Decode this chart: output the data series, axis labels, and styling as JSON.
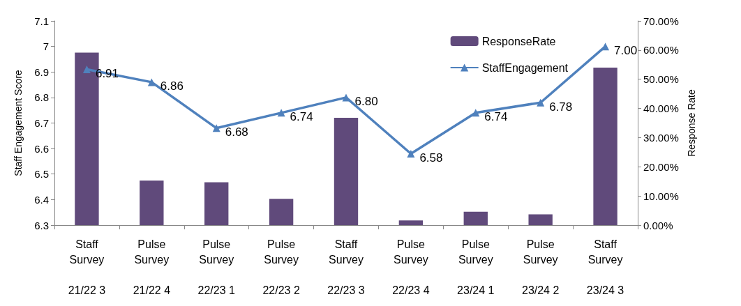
{
  "chart_data": {
    "type": "bar",
    "ylabel": "Staff Engagement Score",
    "y2label": "Response Rate",
    "categories": [
      "Staff\nSurvey\n\n21/22 3",
      "Pulse\nSurvey\n\n21/22 4",
      "Pulse\nSurvey\n\n22/23 1",
      "Pulse\nSurvey\n\n22/23 2",
      "Staff\nSurvey\n\n22/23 3",
      "Pulse\nSurvey\n\n22/23 4",
      "Pulse\nSurvey\n\n23/24 1",
      "Pulse\nSurvey\n\n23/24 2",
      "Staff\nSurvey\n\n23/24 3"
    ],
    "series": [
      {
        "name": "ResponseRate",
        "axis": "y2",
        "color": "#604a7b",
        "values": [
          59.1,
          15.3,
          14.7,
          9.0,
          36.8,
          1.6,
          4.6,
          3.7,
          54.0
        ]
      },
      {
        "name": "StaffEngagement",
        "type": "line",
        "color": "#4f81bd",
        "marker": "triangle",
        "values": [
          6.91,
          6.86,
          6.68,
          6.74,
          6.8,
          6.58,
          6.74,
          6.78,
          7.0
        ],
        "value_labels": [
          "6.91",
          "6.86",
          "6.68",
          "6.74",
          "6.80",
          "6.58",
          "6.74",
          "6.78",
          "7.00"
        ]
      }
    ],
    "ylim": [
      6.3,
      7.1
    ],
    "yticks": [
      6.3,
      6.4,
      6.5,
      6.6,
      6.7,
      6.8,
      6.9,
      7,
      7.1
    ],
    "y2lim": [
      0,
      70
    ],
    "y2ticks": [
      {
        "value": 0,
        "label": "0.00%"
      },
      {
        "value": 10,
        "label": "10.00%"
      },
      {
        "value": 20,
        "label": "20.00%"
      },
      {
        "value": 30,
        "label": "30.00%"
      },
      {
        "value": 40,
        "label": "40.00%"
      },
      {
        "value": 50,
        "label": "50.00%"
      },
      {
        "value": 60,
        "label": "60.00%"
      },
      {
        "value": 70,
        "label": "70.00%"
      }
    ],
    "legend": "top right",
    "grid": false
  }
}
